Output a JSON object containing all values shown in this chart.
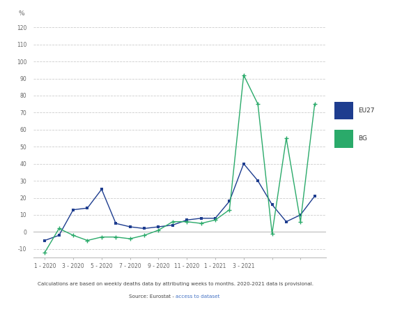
{
  "eu27_x": [
    0,
    1,
    2,
    3,
    4,
    5,
    6,
    7,
    8,
    9,
    10,
    11,
    12,
    13,
    14,
    15,
    16,
    17,
    18,
    19
  ],
  "eu27_y": [
    -5,
    -2,
    13,
    14,
    25,
    5,
    3,
    2,
    3,
    4,
    7,
    8,
    8,
    18,
    40,
    30,
    16,
    6,
    10,
    21
  ],
  "bg_x": [
    0,
    1,
    2,
    3,
    4,
    5,
    6,
    7,
    8,
    9,
    10,
    11,
    12,
    13,
    14,
    15,
    16,
    17,
    18,
    19
  ],
  "bg_y": [
    -12,
    2,
    -2,
    -5,
    -3,
    -3,
    -4,
    -2,
    1,
    6,
    6,
    5,
    7,
    13,
    92,
    75,
    -1,
    55,
    6,
    75
  ],
  "eu27_color": "#1e3d8f",
  "bg_color": "#2aaa6a",
  "ylim": [
    -15,
    125
  ],
  "yticks": [
    -10,
    0,
    10,
    20,
    30,
    40,
    50,
    60,
    70,
    80,
    90,
    100,
    110,
    120
  ],
  "xtick_positions": [
    0,
    2,
    4,
    6,
    8,
    10,
    12,
    14,
    16,
    18
  ],
  "xtick_labels": [
    "1 - 2020",
    "3 - 2020",
    "5 - 2020",
    "7 - 2020",
    "9 - 2020",
    "11 - 2020",
    "1 - 2021",
    "3 - 2021",
    "",
    ""
  ],
  "ylabel": "%",
  "note1": "Calculations are based on weekly deaths data by attributing weeks to months. 2020-2021 data is provisional.",
  "note2_prefix": "Source: Eurostat - ",
  "note2_link": "access to dataset",
  "grid_color": "#cccccc"
}
